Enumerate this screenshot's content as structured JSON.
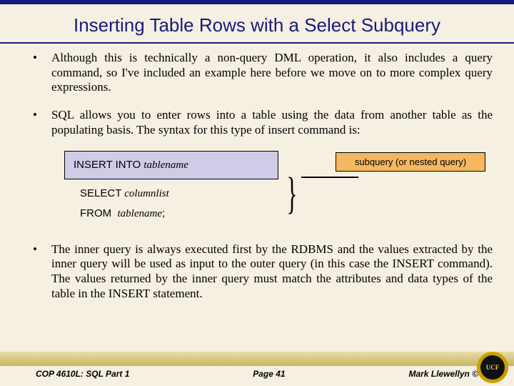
{
  "title": "Inserting Table Rows with a Select Subquery",
  "bullets": {
    "b1": "Although this is technically a non-query DML operation, it also includes a query command, so I've included an example here before we move on to more complex query expressions.",
    "b2": "SQL allows you to enter rows into a table using the data from another table as the populating basis.  The syntax for this type of insert command is:",
    "b3": "The inner query is always executed first by the RDBMS and the values extracted by the inner query will be used as input to the outer query (in this case the INSERT command).  The values returned by the inner query must match the attributes and data types of the table in the INSERT statement."
  },
  "syntax": {
    "line1_kw": "INSERT INTO",
    "line1_it": "tablename",
    "line2_kw": "SELECT",
    "line2_it": "columnlist",
    "line3_kw": "FROM",
    "line3_it": "tablename",
    "line3_semi": ";"
  },
  "callout": "subquery (or nested query)",
  "footer": {
    "left": "COP 4610L: SQL Part 1",
    "center": "Page 41",
    "right": "Mark Llewellyn ©"
  },
  "logo_text": "UCF",
  "colors": {
    "accent": "#1a1a7a",
    "syntax_bg": "#cfcce8",
    "callout_bg": "#f5b860",
    "page_bg": "#f5f0e1"
  }
}
